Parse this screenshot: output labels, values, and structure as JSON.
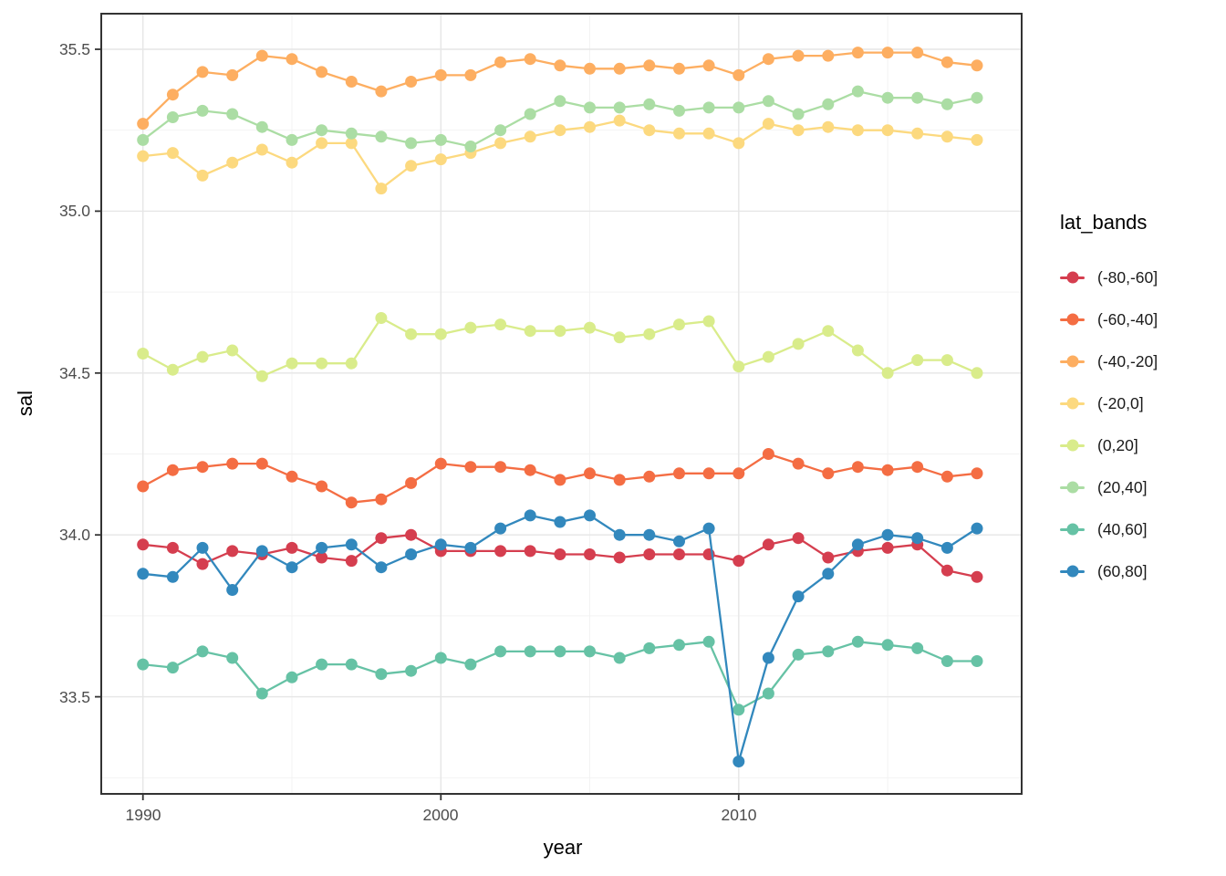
{
  "chart_data": {
    "type": "line",
    "title": "",
    "xlabel": "year",
    "ylabel": "sal",
    "legend_title": "lat_bands",
    "legend_position": "right",
    "grid": true,
    "xlim": [
      1988.6,
      2019.5
    ],
    "ylim": [
      33.2,
      35.61
    ],
    "x_ticks": {
      "labels": [
        "1990",
        "2000",
        "2010"
      ],
      "values": [
        1990,
        2000,
        2010
      ],
      "minor": [
        1995,
        2005,
        2015
      ]
    },
    "y_ticks": {
      "labels": [
        "33.5",
        "34.0",
        "34.5",
        "35.0",
        "35.5"
      ],
      "values": [
        33.5,
        34.0,
        34.5,
        35.0,
        35.5
      ],
      "minor": [
        33.25,
        33.75,
        34.25,
        34.75,
        35.25
      ]
    },
    "x": [
      1990,
      1991,
      1992,
      1993,
      1994,
      1995,
      1996,
      1997,
      1998,
      1999,
      2000,
      2001,
      2002,
      2003,
      2004,
      2005,
      2006,
      2007,
      2008,
      2009,
      2010,
      2011,
      2012,
      2013,
      2014,
      2015,
      2016,
      2017,
      2018
    ],
    "series": [
      {
        "name": "(-80,-60]",
        "color": "#d53e4f",
        "values": [
          33.97,
          33.96,
          33.91,
          33.95,
          33.94,
          33.96,
          33.93,
          33.92,
          33.99,
          34.0,
          33.95,
          33.95,
          33.95,
          33.95,
          33.94,
          33.94,
          33.93,
          33.94,
          33.94,
          33.94,
          33.92,
          33.97,
          33.99,
          33.93,
          33.95,
          33.96,
          33.97,
          33.89,
          33.87
        ]
      },
      {
        "name": "(-60,-40]",
        "color": "#f46d43",
        "values": [
          34.15,
          34.2,
          34.21,
          34.22,
          34.22,
          34.18,
          34.15,
          34.1,
          34.11,
          34.16,
          34.22,
          34.21,
          34.21,
          34.2,
          34.17,
          34.19,
          34.17,
          34.18,
          34.19,
          34.19,
          34.19,
          34.25,
          34.22,
          34.19,
          34.21,
          34.2,
          34.21,
          34.18,
          34.19
        ]
      },
      {
        "name": "(-40,-20]",
        "color": "#fdae61",
        "values": [
          35.27,
          35.36,
          35.43,
          35.42,
          35.48,
          35.47,
          35.43,
          35.4,
          35.37,
          35.4,
          35.42,
          35.42,
          35.46,
          35.47,
          35.45,
          35.44,
          35.44,
          35.45,
          35.44,
          35.45,
          35.42,
          35.47,
          35.48,
          35.48,
          35.49,
          35.49,
          35.49,
          35.46,
          35.45
        ]
      },
      {
        "name": "(-20,0]",
        "color": "#fcd97f",
        "values": [
          35.17,
          35.18,
          35.11,
          35.15,
          35.19,
          35.15,
          35.21,
          35.21,
          35.07,
          35.14,
          35.16,
          35.18,
          35.21,
          35.23,
          35.25,
          35.26,
          35.28,
          35.25,
          35.24,
          35.24,
          35.21,
          35.27,
          35.25,
          35.26,
          35.25,
          35.25,
          35.24,
          35.23,
          35.22
        ]
      },
      {
        "name": "(0,20]",
        "color": "#d9ec8b",
        "values": [
          34.56,
          34.51,
          34.55,
          34.57,
          34.49,
          34.53,
          34.53,
          34.53,
          34.67,
          34.62,
          34.62,
          34.64,
          34.65,
          34.63,
          34.63,
          34.64,
          34.61,
          34.62,
          34.65,
          34.66,
          34.52,
          34.55,
          34.59,
          34.63,
          34.57,
          34.5,
          34.54,
          34.54,
          34.5
        ]
      },
      {
        "name": "(20,40]",
        "color": "#abdda4",
        "values": [
          35.22,
          35.29,
          35.31,
          35.3,
          35.26,
          35.22,
          35.25,
          35.24,
          35.23,
          35.21,
          35.22,
          35.2,
          35.25,
          35.3,
          35.34,
          35.32,
          35.32,
          35.33,
          35.31,
          35.32,
          35.32,
          35.34,
          35.3,
          35.33,
          35.37,
          35.35,
          35.35,
          35.33,
          35.35
        ]
      },
      {
        "name": "(40,60]",
        "color": "#66c2a5",
        "values": [
          33.6,
          33.59,
          33.64,
          33.62,
          33.51,
          33.56,
          33.6,
          33.6,
          33.57,
          33.58,
          33.62,
          33.6,
          33.64,
          33.64,
          33.64,
          33.64,
          33.62,
          33.65,
          33.66,
          33.67,
          33.46,
          33.51,
          33.63,
          33.64,
          33.67,
          33.66,
          33.65,
          33.61,
          33.61
        ]
      },
      {
        "name": "(60,80]",
        "color": "#3288bd",
        "values": [
          33.88,
          33.87,
          33.96,
          33.83,
          33.95,
          33.9,
          33.96,
          33.97,
          33.9,
          33.94,
          33.97,
          33.96,
          34.02,
          34.06,
          34.04,
          34.06,
          34.0,
          34.0,
          33.98,
          34.02,
          33.3,
          33.62,
          33.81,
          33.88,
          33.97,
          34.0,
          33.99,
          33.96,
          34.02
        ]
      }
    ]
  },
  "theme": {
    "background": "#ffffff",
    "panel_background": "#ffffff",
    "panel_border": "#333333",
    "grid_major": "#e6e6e6",
    "grid_minor": "#f2f2f2",
    "tick_color": "#333333",
    "tick_label_color": "#4d4d4d",
    "axis_title_color": "#000000",
    "legend_text_color": "#1a1a1a"
  }
}
